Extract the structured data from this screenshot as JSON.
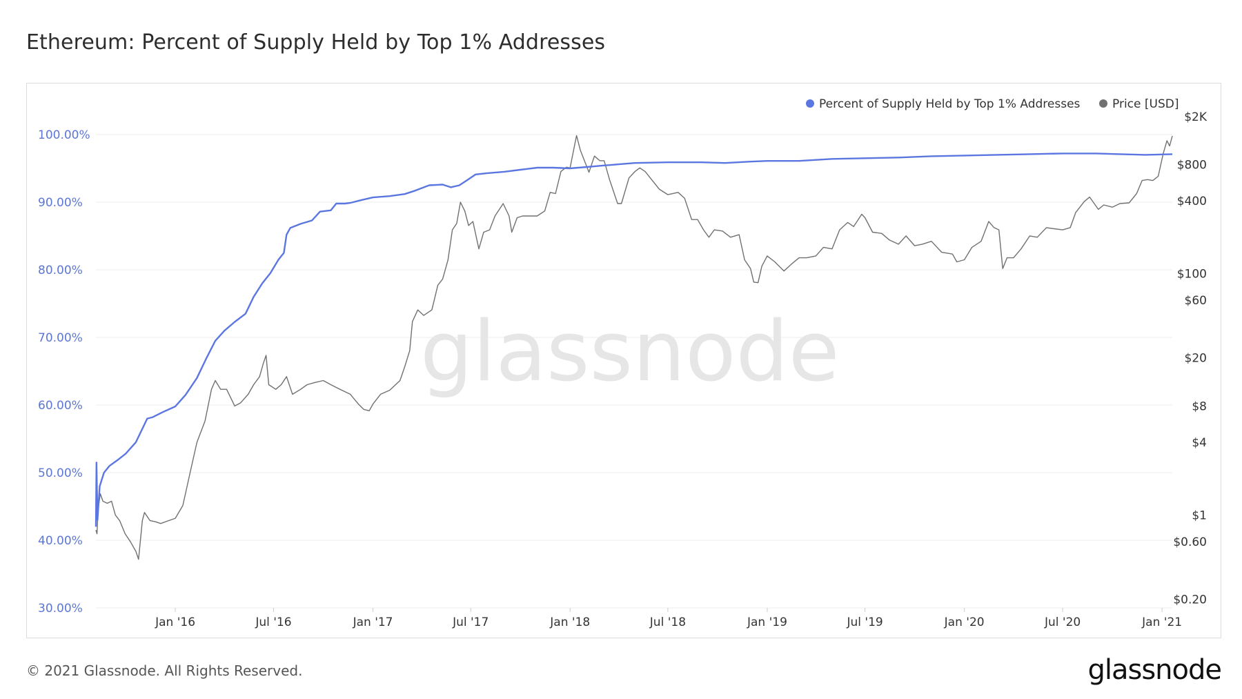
{
  "title": "Ethereum: Percent of Supply Held by Top 1% Addresses",
  "footer": {
    "copyright": "© 2021 Glassnode. All Rights Reserved.",
    "logo": "glassnode"
  },
  "watermark": "glassnode",
  "colors": {
    "supply": "#5b76e0",
    "price": "#707070",
    "left_axis": "#5b76d6",
    "grid": "#eeeeee"
  },
  "chart_data": {
    "type": "line",
    "title": "Ethereum: Percent of Supply Held by Top 1% Addresses",
    "legend_position": "top-right",
    "grid": true,
    "x_ticks": [
      "Jan '16",
      "Jul '16",
      "Jan '17",
      "Jul '17",
      "Jan '18",
      "Jul '18",
      "Jan '19",
      "Jul '19",
      "Jan '20",
      "Jul '20",
      "Jan '21"
    ],
    "x_tick_dates": [
      "2016-01-01",
      "2016-07-01",
      "2017-01-01",
      "2017-07-01",
      "2018-01-01",
      "2018-07-01",
      "2019-01-01",
      "2019-07-01",
      "2020-01-01",
      "2020-07-01",
      "2021-01-01"
    ],
    "xlim": [
      "2015-08-07",
      "2021-01-20"
    ],
    "y_left": {
      "ticks": [
        "30.00%",
        "40.00%",
        "50.00%",
        "60.00%",
        "70.00%",
        "80.00%",
        "90.00%",
        "100.00%"
      ],
      "tick_values": [
        30,
        40,
        50,
        60,
        70,
        80,
        90,
        100
      ],
      "range": [
        30,
        105
      ]
    },
    "y_right": {
      "scale": "log",
      "ticks": [
        "$0.20",
        "$0.60",
        "$1",
        "$4",
        "$8",
        "$20",
        "$60",
        "$100",
        "$400",
        "$800",
        "$2K"
      ],
      "tick_values": [
        0.2,
        0.6,
        1,
        4,
        8,
        20,
        60,
        100,
        400,
        800,
        2000
      ],
      "range": [
        0.17,
        2700
      ]
    },
    "series": [
      {
        "name": "Percent of Supply Held by Top 1% Addresses",
        "axis": "left",
        "points": [
          [
            "2015-08-07",
            42
          ],
          [
            "2015-08-08",
            51.5
          ],
          [
            "2015-08-10",
            43
          ],
          [
            "2015-08-14",
            48
          ],
          [
            "2015-08-22",
            50
          ],
          [
            "2015-09-01",
            51
          ],
          [
            "2015-09-15",
            51.8
          ],
          [
            "2015-10-01",
            52.8
          ],
          [
            "2015-10-20",
            54.5
          ],
          [
            "2015-11-10",
            58
          ],
          [
            "2015-11-20",
            58.2
          ],
          [
            "2015-12-10",
            59
          ],
          [
            "2016-01-01",
            59.8
          ],
          [
            "2016-01-20",
            61.5
          ],
          [
            "2016-02-10",
            64
          ],
          [
            "2016-02-28",
            67
          ],
          [
            "2016-03-15",
            69.5
          ],
          [
            "2016-04-01",
            71
          ],
          [
            "2016-04-20",
            72.3
          ],
          [
            "2016-05-10",
            73.5
          ],
          [
            "2016-05-25",
            76
          ],
          [
            "2016-06-10",
            78
          ],
          [
            "2016-06-25",
            79.5
          ],
          [
            "2016-07-10",
            81.5
          ],
          [
            "2016-07-20",
            82.5
          ],
          [
            "2016-07-25",
            85.2
          ],
          [
            "2016-08-01",
            86.2
          ],
          [
            "2016-08-20",
            86.8
          ],
          [
            "2016-09-10",
            87.3
          ],
          [
            "2016-09-25",
            88.6
          ],
          [
            "2016-10-15",
            88.8
          ],
          [
            "2016-10-25",
            89.8
          ],
          [
            "2016-11-10",
            89.8
          ],
          [
            "2016-11-20",
            89.9
          ],
          [
            "2016-12-10",
            90.3
          ],
          [
            "2017-01-01",
            90.7
          ],
          [
            "2017-02-01",
            90.9
          ],
          [
            "2017-03-01",
            91.2
          ],
          [
            "2017-03-20",
            91.7
          ],
          [
            "2017-04-15",
            92.5
          ],
          [
            "2017-05-10",
            92.6
          ],
          [
            "2017-05-25",
            92.2
          ],
          [
            "2017-06-10",
            92.5
          ],
          [
            "2017-06-25",
            93.3
          ],
          [
            "2017-07-10",
            94.1
          ],
          [
            "2017-08-01",
            94.3
          ],
          [
            "2017-09-01",
            94.5
          ],
          [
            "2017-10-01",
            94.8
          ],
          [
            "2017-11-01",
            95.1
          ],
          [
            "2017-12-01",
            95.1
          ],
          [
            "2018-01-01",
            95
          ],
          [
            "2018-02-01",
            95.2
          ],
          [
            "2018-03-01",
            95.4
          ],
          [
            "2018-04-01",
            95.6
          ],
          [
            "2018-05-01",
            95.8
          ],
          [
            "2018-07-01",
            95.9
          ],
          [
            "2018-09-01",
            95.9
          ],
          [
            "2018-10-15",
            95.8
          ],
          [
            "2018-12-01",
            96
          ],
          [
            "2019-01-01",
            96.1
          ],
          [
            "2019-03-01",
            96.1
          ],
          [
            "2019-05-01",
            96.4
          ],
          [
            "2019-07-01",
            96.5
          ],
          [
            "2019-09-01",
            96.6
          ],
          [
            "2019-11-01",
            96.8
          ],
          [
            "2020-01-01",
            96.9
          ],
          [
            "2020-03-01",
            97
          ],
          [
            "2020-05-01",
            97.1
          ],
          [
            "2020-07-01",
            97.2
          ],
          [
            "2020-09-01",
            97.2
          ],
          [
            "2020-10-15",
            97.1
          ],
          [
            "2020-12-01",
            97
          ],
          [
            "2021-01-20",
            97.1
          ]
        ]
      },
      {
        "name": "Price [USD]",
        "axis": "right",
        "points": [
          [
            "2015-08-07",
            0.75
          ],
          [
            "2015-08-09",
            0.7
          ],
          [
            "2015-08-11",
            1.1
          ],
          [
            "2015-08-15",
            1.5
          ],
          [
            "2015-08-20",
            1.3
          ],
          [
            "2015-08-28",
            1.25
          ],
          [
            "2015-09-05",
            1.3
          ],
          [
            "2015-09-12",
            1.0
          ],
          [
            "2015-09-20",
            0.9
          ],
          [
            "2015-09-30",
            0.7
          ],
          [
            "2015-10-10",
            0.6
          ],
          [
            "2015-10-20",
            0.5
          ],
          [
            "2015-10-25",
            0.43
          ],
          [
            "2015-11-01",
            0.9
          ],
          [
            "2015-11-05",
            1.05
          ],
          [
            "2015-11-15",
            0.9
          ],
          [
            "2015-11-25",
            0.88
          ],
          [
            "2015-12-05",
            0.85
          ],
          [
            "2015-12-20",
            0.9
          ],
          [
            "2016-01-01",
            0.94
          ],
          [
            "2016-01-15",
            1.2
          ],
          [
            "2016-01-28",
            2.2
          ],
          [
            "2016-02-10",
            4
          ],
          [
            "2016-02-25",
            6
          ],
          [
            "2016-03-08",
            11
          ],
          [
            "2016-03-15",
            13
          ],
          [
            "2016-03-25",
            11
          ],
          [
            "2016-04-05",
            11
          ],
          [
            "2016-04-20",
            8
          ],
          [
            "2016-05-01",
            8.5
          ],
          [
            "2016-05-15",
            10
          ],
          [
            "2016-05-25",
            12
          ],
          [
            "2016-06-05",
            14
          ],
          [
            "2016-06-12",
            18
          ],
          [
            "2016-06-17",
            21
          ],
          [
            "2016-06-22",
            12
          ],
          [
            "2016-07-05",
            11
          ],
          [
            "2016-07-15",
            12
          ],
          [
            "2016-07-25",
            14
          ],
          [
            "2016-08-05",
            10
          ],
          [
            "2016-08-20",
            11
          ],
          [
            "2016-09-01",
            12
          ],
          [
            "2016-09-15",
            12.5
          ],
          [
            "2016-10-01",
            13
          ],
          [
            "2016-10-15",
            12
          ],
          [
            "2016-11-01",
            11
          ],
          [
            "2016-11-20",
            10
          ],
          [
            "2016-12-05",
            8.3
          ],
          [
            "2016-12-15",
            7.5
          ],
          [
            "2016-12-25",
            7.3
          ],
          [
            "2017-01-01",
            8.3
          ],
          [
            "2017-01-15",
            10
          ],
          [
            "2017-02-01",
            10.8
          ],
          [
            "2017-02-20",
            13
          ],
          [
            "2017-03-01",
            17
          ],
          [
            "2017-03-10",
            23
          ],
          [
            "2017-03-15",
            40
          ],
          [
            "2017-03-25",
            50
          ],
          [
            "2017-04-05",
            45
          ],
          [
            "2017-04-20",
            50
          ],
          [
            "2017-05-01",
            80
          ],
          [
            "2017-05-10",
            90
          ],
          [
            "2017-05-20",
            130
          ],
          [
            "2017-05-28",
            230
          ],
          [
            "2017-06-05",
            260
          ],
          [
            "2017-06-12",
            390
          ],
          [
            "2017-06-20",
            330
          ],
          [
            "2017-06-27",
            250
          ],
          [
            "2017-07-05",
            270
          ],
          [
            "2017-07-16",
            160
          ],
          [
            "2017-07-25",
            220
          ],
          [
            "2017-08-05",
            230
          ],
          [
            "2017-08-15",
            300
          ],
          [
            "2017-08-30",
            380
          ],
          [
            "2017-09-10",
            300
          ],
          [
            "2017-09-15",
            220
          ],
          [
            "2017-09-25",
            290
          ],
          [
            "2017-10-05",
            300
          ],
          [
            "2017-10-20",
            300
          ],
          [
            "2017-11-01",
            300
          ],
          [
            "2017-11-15",
            330
          ],
          [
            "2017-11-25",
            470
          ],
          [
            "2017-12-05",
            460
          ],
          [
            "2017-12-15",
            700
          ],
          [
            "2017-12-25",
            760
          ],
          [
            "2018-01-01",
            750
          ],
          [
            "2018-01-10",
            1200
          ],
          [
            "2018-01-13",
            1390
          ],
          [
            "2018-01-20",
            1050
          ],
          [
            "2018-02-05",
            690
          ],
          [
            "2018-02-15",
            940
          ],
          [
            "2018-02-25",
            860
          ],
          [
            "2018-03-05",
            860
          ],
          [
            "2018-03-15",
            600
          ],
          [
            "2018-03-30",
            380
          ],
          [
            "2018-04-06",
            380
          ],
          [
            "2018-04-20",
            620
          ],
          [
            "2018-05-01",
            700
          ],
          [
            "2018-05-10",
            750
          ],
          [
            "2018-05-20",
            700
          ],
          [
            "2018-06-01",
            600
          ],
          [
            "2018-06-15",
            500
          ],
          [
            "2018-07-01",
            450
          ],
          [
            "2018-07-20",
            470
          ],
          [
            "2018-08-01",
            420
          ],
          [
            "2018-08-14",
            280
          ],
          [
            "2018-08-25",
            280
          ],
          [
            "2018-09-05",
            230
          ],
          [
            "2018-09-15",
            200
          ],
          [
            "2018-09-25",
            230
          ],
          [
            "2018-10-10",
            225
          ],
          [
            "2018-10-25",
            200
          ],
          [
            "2018-11-10",
            210
          ],
          [
            "2018-11-20",
            130
          ],
          [
            "2018-12-01",
            110
          ],
          [
            "2018-12-07",
            85
          ],
          [
            "2018-12-15",
            84
          ],
          [
            "2018-12-22",
            115
          ],
          [
            "2019-01-01",
            140
          ],
          [
            "2019-01-15",
            125
          ],
          [
            "2019-02-01",
            105
          ],
          [
            "2019-02-15",
            120
          ],
          [
            "2019-03-01",
            135
          ],
          [
            "2019-03-15",
            135
          ],
          [
            "2019-04-01",
            140
          ],
          [
            "2019-04-15",
            165
          ],
          [
            "2019-05-01",
            160
          ],
          [
            "2019-05-15",
            230
          ],
          [
            "2019-05-30",
            265
          ],
          [
            "2019-06-10",
            245
          ],
          [
            "2019-06-25",
            310
          ],
          [
            "2019-07-01",
            290
          ],
          [
            "2019-07-15",
            220
          ],
          [
            "2019-08-01",
            215
          ],
          [
            "2019-08-15",
            190
          ],
          [
            "2019-09-01",
            175
          ],
          [
            "2019-09-15",
            205
          ],
          [
            "2019-10-01",
            170
          ],
          [
            "2019-10-15",
            175
          ],
          [
            "2019-11-01",
            185
          ],
          [
            "2019-11-20",
            150
          ],
          [
            "2019-12-10",
            145
          ],
          [
            "2019-12-18",
            125
          ],
          [
            "2020-01-01",
            130
          ],
          [
            "2020-01-15",
            165
          ],
          [
            "2020-02-01",
            185
          ],
          [
            "2020-02-15",
            270
          ],
          [
            "2020-02-25",
            240
          ],
          [
            "2020-03-05",
            230
          ],
          [
            "2020-03-12",
            110
          ],
          [
            "2020-03-20",
            135
          ],
          [
            "2020-04-01",
            135
          ],
          [
            "2020-04-15",
            160
          ],
          [
            "2020-05-01",
            205
          ],
          [
            "2020-05-15",
            200
          ],
          [
            "2020-06-01",
            240
          ],
          [
            "2020-06-15",
            235
          ],
          [
            "2020-07-01",
            230
          ],
          [
            "2020-07-15",
            240
          ],
          [
            "2020-07-25",
            320
          ],
          [
            "2020-08-10",
            395
          ],
          [
            "2020-08-20",
            430
          ],
          [
            "2020-09-05",
            340
          ],
          [
            "2020-09-15",
            370
          ],
          [
            "2020-10-01",
            355
          ],
          [
            "2020-10-15",
            380
          ],
          [
            "2020-11-01",
            385
          ],
          [
            "2020-11-15",
            460
          ],
          [
            "2020-11-25",
            590
          ],
          [
            "2020-12-05",
            600
          ],
          [
            "2020-12-15",
            590
          ],
          [
            "2020-12-25",
            640
          ],
          [
            "2021-01-03",
            980
          ],
          [
            "2021-01-10",
            1260
          ],
          [
            "2021-01-15",
            1140
          ],
          [
            "2021-01-20",
            1380
          ]
        ]
      }
    ]
  }
}
